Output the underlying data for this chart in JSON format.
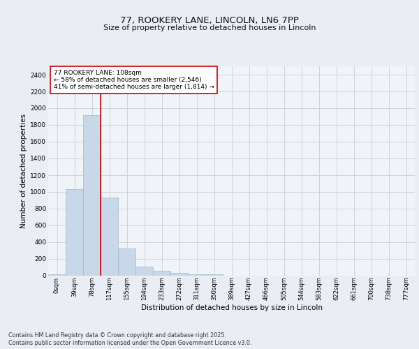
{
  "title1": "77, ROOKERY LANE, LINCOLN, LN6 7PP",
  "title2": "Size of property relative to detached houses in Lincoln",
  "xlabel": "Distribution of detached houses by size in Lincoln",
  "ylabel": "Number of detached properties",
  "bar_color": "#c8d8e8",
  "bar_edgecolor": "#a0b8cc",
  "background_color": "#eaeef4",
  "plot_bg_color": "#f0f4f8",
  "grid_color": "#c8cfd8",
  "ylim": [
    0,
    2500
  ],
  "yticks": [
    0,
    200,
    400,
    600,
    800,
    1000,
    1200,
    1400,
    1600,
    1800,
    2000,
    2200,
    2400
  ],
  "bins": [
    "0sqm",
    "39sqm",
    "78sqm",
    "117sqm",
    "155sqm",
    "194sqm",
    "233sqm",
    "272sqm",
    "311sqm",
    "350sqm",
    "389sqm",
    "427sqm",
    "466sqm",
    "505sqm",
    "544sqm",
    "583sqm",
    "622sqm",
    "661sqm",
    "700sqm",
    "738sqm",
    "777sqm"
  ],
  "values": [
    15,
    1030,
    1920,
    930,
    325,
    110,
    55,
    30,
    20,
    18,
    0,
    0,
    0,
    0,
    0,
    0,
    0,
    0,
    0,
    0,
    0
  ],
  "red_line_x": 2.5,
  "annotation_text": "77 ROOKERY LANE: 108sqm\n← 58% of detached houses are smaller (2,546)\n41% of semi-detached houses are larger (1,814) →",
  "footnote1": "Contains HM Land Registry data © Crown copyright and database right 2025.",
  "footnote2": "Contains public sector information licensed under the Open Government Licence v3.0.",
  "red_line_color": "#cc0000",
  "annotation_box_color": "#ffffff",
  "annotation_box_edgecolor": "#cc0000"
}
